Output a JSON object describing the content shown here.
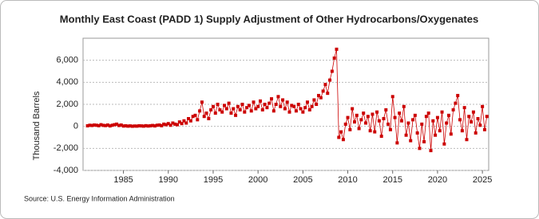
{
  "chart_data": {
    "type": "line",
    "title": "Monthly East Coast (PADD 1) Supply Adjustment of Other Hydrocarbons/Oxygenates",
    "y_label": "Thousand Barrels",
    "source": "Source: U.S. Energy Information Administration",
    "color": "#cc0000",
    "grid": true,
    "xlim": [
      1980.5,
      2025.7
    ],
    "xticks": [
      1985,
      1990,
      1995,
      2000,
      2005,
      2010,
      2015,
      2020,
      2025
    ],
    "ylim": [
      -4000,
      8000
    ],
    "yticks": [
      {
        "value": -4000,
        "label": "-4,000"
      },
      {
        "value": -2000,
        "label": "-2,000"
      },
      0,
      {
        "value": 2000,
        "label": "2,000"
      },
      {
        "value": 4000,
        "label": "4,000"
      },
      {
        "value": 6000,
        "label": "6,000"
      }
    ],
    "x": [
      1981,
      1981.25,
      1981.5,
      1981.75,
      1982,
      1982.25,
      1982.5,
      1982.75,
      1983,
      1983.25,
      1983.5,
      1983.75,
      1984,
      1984.25,
      1984.5,
      1984.75,
      1985,
      1985.25,
      1985.5,
      1985.75,
      1986,
      1986.25,
      1986.5,
      1986.75,
      1987,
      1987.25,
      1987.5,
      1987.75,
      1988,
      1988.25,
      1988.5,
      1988.75,
      1989,
      1989.25,
      1989.5,
      1989.75,
      1990,
      1990.25,
      1990.5,
      1990.75,
      1991,
      1991.25,
      1991.5,
      1991.75,
      1992,
      1992.25,
      1992.5,
      1992.75,
      1993,
      1993.25,
      1993.5,
      1993.75,
      1994,
      1994.25,
      1994.5,
      1994.75,
      1995,
      1995.25,
      1995.5,
      1995.75,
      1996,
      1996.25,
      1996.5,
      1996.75,
      1997,
      1997.25,
      1997.5,
      1997.75,
      1998,
      1998.25,
      1998.5,
      1998.75,
      1999,
      1999.25,
      1999.5,
      1999.75,
      2000,
      2000.25,
      2000.5,
      2000.75,
      2001,
      2001.25,
      2001.5,
      2001.75,
      2002,
      2002.25,
      2002.5,
      2002.75,
      2003,
      2003.25,
      2003.5,
      2003.75,
      2004,
      2004.25,
      2004.5,
      2004.75,
      2005,
      2005.25,
      2005.5,
      2005.75,
      2006,
      2006.25,
      2006.5,
      2006.75,
      2007,
      2007.25,
      2007.5,
      2007.75,
      2008,
      2008.25,
      2008.5,
      2008.75,
      2009,
      2009.25,
      2009.5,
      2009.75,
      2010,
      2010.25,
      2010.5,
      2010.75,
      2011,
      2011.25,
      2011.5,
      2011.75,
      2012,
      2012.25,
      2012.5,
      2012.75,
      2013,
      2013.25,
      2013.5,
      2013.75,
      2014,
      2014.25,
      2014.5,
      2014.75,
      2015,
      2015.25,
      2015.5,
      2015.75,
      2016,
      2016.25,
      2016.5,
      2016.75,
      2017,
      2017.25,
      2017.5,
      2017.75,
      2018,
      2018.25,
      2018.5,
      2018.75,
      2019,
      2019.25,
      2019.5,
      2019.75,
      2020,
      2020.25,
      2020.5,
      2020.75,
      2021,
      2021.25,
      2021.5,
      2021.75,
      2022,
      2022.25,
      2022.5,
      2022.75,
      2023,
      2023.25,
      2023.5,
      2023.75,
      2024,
      2024.25,
      2024.5,
      2024.75,
      2025,
      2025.25,
      2025.5
    ],
    "values": [
      50,
      100,
      80,
      120,
      100,
      60,
      150,
      90,
      70,
      120,
      40,
      100,
      150,
      200,
      80,
      120,
      30,
      50,
      20,
      40,
      10,
      30,
      20,
      50,
      40,
      20,
      60,
      30,
      50,
      80,
      40,
      100,
      120,
      60,
      200,
      150,
      250,
      100,
      300,
      200,
      150,
      400,
      250,
      500,
      300,
      700,
      500,
      900,
      1000,
      600,
      1400,
      2200,
      900,
      1200,
      700,
      1500,
      1800,
      1200,
      2000,
      1500,
      1300,
      1900,
      1600,
      2100,
      1200,
      1600,
      1000,
      1800,
      1500,
      2000,
      1300,
      1700,
      1900,
      1400,
      2200,
      1600,
      1800,
      2300,
      1500,
      2000,
      1700,
      2100,
      2500,
      1400,
      2000,
      2700,
      1800,
      2400,
      1600,
      2200,
      1300,
      1900,
      1800,
      1400,
      2000,
      1600,
      1300,
      1700,
      2200,
      1500,
      1800,
      2400,
      2000,
      2800,
      2600,
      3200,
      3800,
      3000,
      4200,
      5000,
      6200,
      7000,
      -1000,
      -500,
      -1200,
      200,
      800,
      -300,
      1600,
      400,
      1000,
      -200,
      600,
      1200,
      300,
      900,
      -400,
      1100,
      -500,
      1300,
      500,
      -900,
      700,
      1500,
      200,
      -300,
      2700,
      800,
      -1500,
      1200,
      500,
      1800,
      -800,
      300,
      -1300,
      600,
      1000,
      -600,
      -2000,
      200,
      -1400,
      900,
      1200,
      -2200,
      500,
      -800,
      800,
      -400,
      1300,
      -1600,
      300,
      1000,
      -700,
      1500,
      2100,
      2800,
      600,
      -400,
      1700,
      -1200,
      900,
      400,
      1300,
      -600,
      700,
      100,
      1800,
      -300,
      900
    ]
  }
}
